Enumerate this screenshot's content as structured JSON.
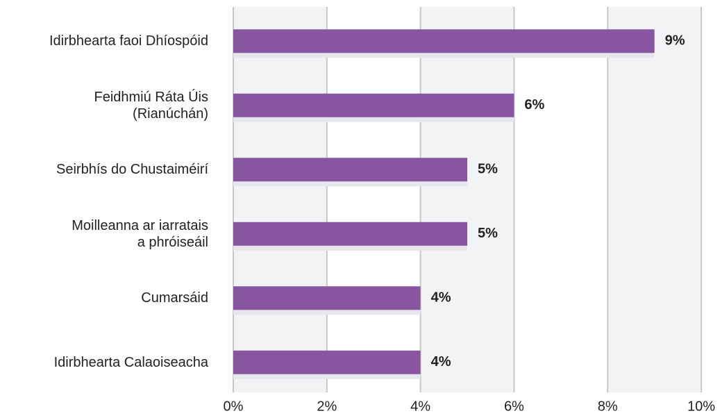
{
  "chart_data": {
    "type": "bar",
    "orientation": "horizontal",
    "categories": [
      "Idirbhearta faoi Dhíospóid",
      "Feidhmiú Ráta Úis\n(Rianúchán)",
      "Seirbhís do Chustaiméirí",
      "Moilleanna ar iarratais\na phróiseáil",
      "Cumarsáid",
      "Idirbhearta Calaoiseacha"
    ],
    "values": [
      9,
      6,
      5,
      5,
      4,
      4
    ],
    "value_labels": [
      "9%",
      "6%",
      "5%",
      "5%",
      "4%",
      "4%"
    ],
    "color": "#8856a0",
    "xlim": [
      0,
      10
    ],
    "xticks": [
      {
        "value": 0,
        "label": "0%"
      },
      {
        "value": 2,
        "label": "2%"
      },
      {
        "value": 4,
        "label": "4%"
      },
      {
        "value": 6,
        "label": "6%"
      },
      {
        "value": 8,
        "label": "8%"
      },
      {
        "value": 10,
        "label": "10%"
      }
    ],
    "grid": true
  }
}
